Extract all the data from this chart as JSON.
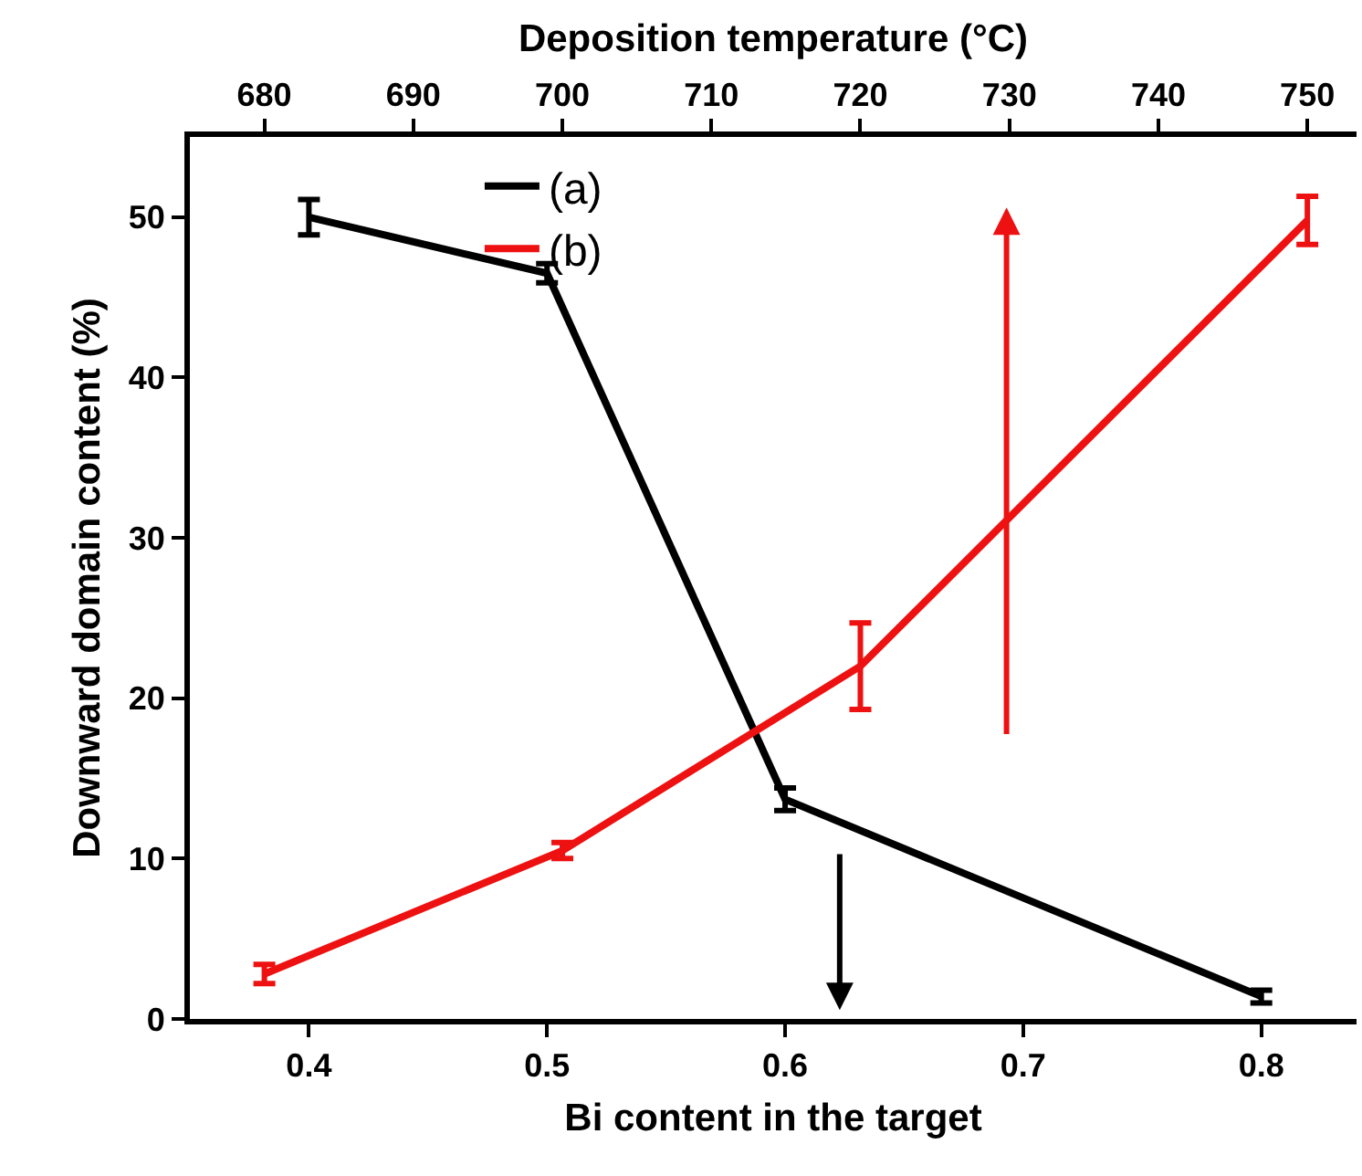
{
  "chart_data": {
    "type": "line",
    "xlabel": "Bi content in the target",
    "x2label": "Deposition temperature (°C)",
    "ylabel": "Downward domain content (%)",
    "series": [
      {
        "name": "(a)",
        "color": "#000000",
        "x": [
          0.4,
          0.5,
          0.6,
          0.8
        ],
        "values": [
          50,
          46.5,
          13.7,
          1.4
        ],
        "errors": [
          1.1,
          0.6,
          0.7,
          0.4
        ]
      },
      {
        "name": "(b)",
        "color": "#ee1111",
        "axis": "x2",
        "x": [
          680,
          700,
          720,
          750
        ],
        "values": [
          2.8,
          10.5,
          22,
          49.8
        ],
        "errors": [
          0.6,
          0.5,
          2.7,
          1.5
        ]
      }
    ],
    "xlim": [
      0.35,
      0.84
    ],
    "xticks": [
      0.4,
      0.5,
      0.6,
      0.7,
      0.8
    ],
    "x2lim": [
      675,
      753.3
    ],
    "x2ticks": [
      680,
      690,
      700,
      710,
      720,
      730,
      740,
      750
    ],
    "ylim": [
      0,
      55
    ],
    "yticks": [
      0,
      10,
      20,
      30,
      40,
      50
    ],
    "legend": "top",
    "line_style": "solid"
  }
}
